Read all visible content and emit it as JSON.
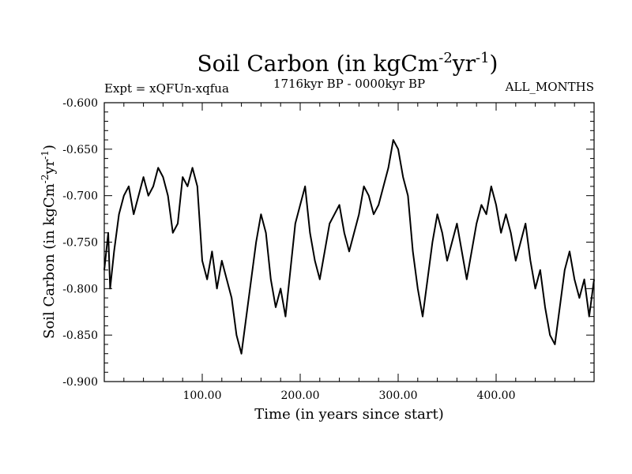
{
  "chart_data": {
    "type": "line",
    "title": "Soil Carbon (in kgCm",
    "title_sup1": "-2",
    "title_mid": "yr",
    "title_sup2": "-1",
    "title_end": ")",
    "subtitle_left": "Expt = xQFUn-xqfua",
    "subtitle_center": "1716kyr BP - 0000kyr BP",
    "subtitle_right": "ALL_MONTHS",
    "xlabel": "Time (in years since start)",
    "ylabel": "Soil Carbon (in kgCm",
    "ylabel_sup1": "-2",
    "ylabel_mid": "yr",
    "ylabel_sup2": "-1",
    "ylabel_end": ")",
    "xlim": [
      0,
      500
    ],
    "ylim": [
      -0.9,
      -0.6
    ],
    "xticks": [
      100,
      200,
      300,
      400
    ],
    "xtick_labels": [
      "100.00",
      "200.00",
      "300.00",
      "400.00"
    ],
    "yticks": [
      -0.6,
      -0.65,
      -0.7,
      -0.75,
      -0.8,
      -0.85,
      -0.9
    ],
    "ytick_labels": [
      "-0.600",
      "-0.650",
      "-0.700",
      "-0.750",
      "-0.800",
      "-0.850",
      "-0.900"
    ],
    "line_color": "#000000",
    "series": [
      {
        "name": "soil_carbon",
        "x": [
          0,
          4,
          6,
          10,
          15,
          20,
          25,
          30,
          35,
          40,
          45,
          50,
          55,
          60,
          65,
          70,
          75,
          80,
          85,
          90,
          95,
          100,
          105,
          110,
          115,
          120,
          125,
          130,
          135,
          140,
          145,
          150,
          155,
          160,
          165,
          170,
          175,
          180,
          185,
          190,
          195,
          200,
          205,
          210,
          215,
          220,
          225,
          230,
          235,
          240,
          245,
          250,
          255,
          260,
          265,
          270,
          275,
          280,
          285,
          290,
          295,
          300,
          305,
          310,
          315,
          320,
          325,
          330,
          335,
          340,
          345,
          350,
          355,
          360,
          365,
          370,
          375,
          380,
          385,
          390,
          395,
          400,
          405,
          410,
          415,
          420,
          425,
          430,
          435,
          440,
          445,
          450,
          455,
          460,
          465,
          470,
          475,
          480,
          485,
          490,
          495,
          500
        ],
        "values": [
          -0.78,
          -0.74,
          -0.8,
          -0.76,
          -0.72,
          -0.7,
          -0.69,
          -0.72,
          -0.7,
          -0.68,
          -0.7,
          -0.69,
          -0.67,
          -0.68,
          -0.7,
          -0.74,
          -0.73,
          -0.68,
          -0.69,
          -0.67,
          -0.69,
          -0.77,
          -0.79,
          -0.76,
          -0.8,
          -0.77,
          -0.79,
          -0.81,
          -0.85,
          -0.87,
          -0.83,
          -0.79,
          -0.75,
          -0.72,
          -0.74,
          -0.79,
          -0.82,
          -0.8,
          -0.83,
          -0.78,
          -0.73,
          -0.71,
          -0.69,
          -0.74,
          -0.77,
          -0.79,
          -0.76,
          -0.73,
          -0.72,
          -0.71,
          -0.74,
          -0.76,
          -0.74,
          -0.72,
          -0.69,
          -0.7,
          -0.72,
          -0.71,
          -0.69,
          -0.67,
          -0.64,
          -0.65,
          -0.68,
          -0.7,
          -0.76,
          -0.8,
          -0.83,
          -0.79,
          -0.75,
          -0.72,
          -0.74,
          -0.77,
          -0.75,
          -0.73,
          -0.76,
          -0.79,
          -0.76,
          -0.73,
          -0.71,
          -0.72,
          -0.69,
          -0.71,
          -0.74,
          -0.72,
          -0.74,
          -0.77,
          -0.75,
          -0.73,
          -0.77,
          -0.8,
          -0.78,
          -0.82,
          -0.85,
          -0.86,
          -0.82,
          -0.78,
          -0.76,
          -0.79,
          -0.81,
          -0.79,
          -0.83,
          -0.79
        ]
      }
    ]
  }
}
